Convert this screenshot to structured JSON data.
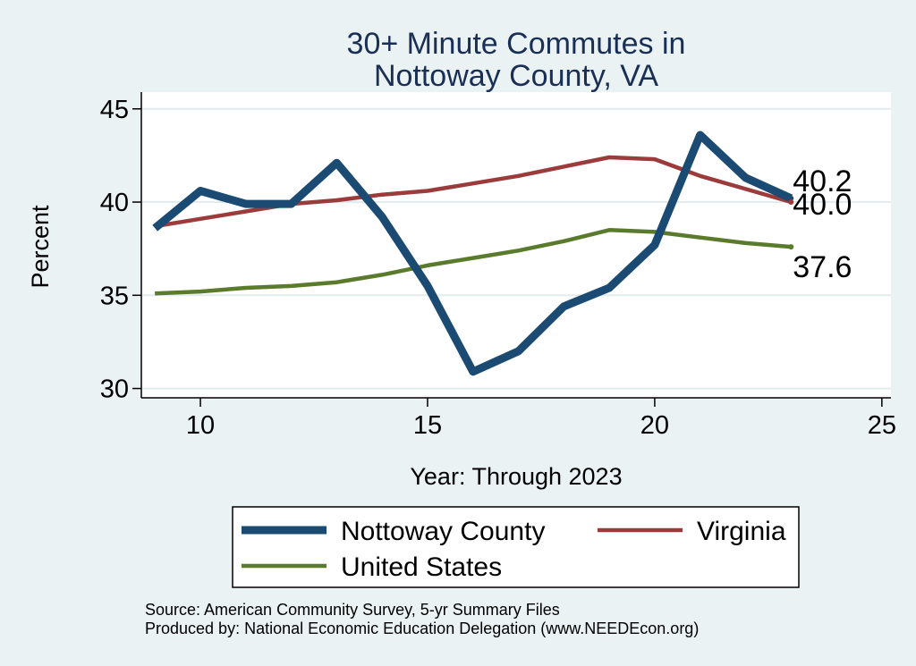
{
  "chart_data": {
    "type": "line",
    "title": [
      "30+ Minute Commutes in",
      "Nottoway County, VA"
    ],
    "xlabel": "Year: Through 2023",
    "ylabel": "Percent",
    "xlim": [
      8.7,
      25.2
    ],
    "ylim": [
      29.5,
      45.9
    ],
    "x_ticks": [
      10,
      15,
      20,
      25
    ],
    "y_ticks": [
      30,
      35,
      40,
      45
    ],
    "grid": true,
    "x": [
      9,
      10,
      11,
      12,
      13,
      14,
      15,
      16,
      17,
      18,
      19,
      20,
      21,
      22,
      23
    ],
    "series": [
      {
        "name": "Nottoway County",
        "color": "#1b4a72",
        "values": [
          38.6,
          40.6,
          39.9,
          39.9,
          42.1,
          39.2,
          35.5,
          30.9,
          32.0,
          34.4,
          35.4,
          37.7,
          43.6,
          41.3,
          40.2
        ],
        "end_label": "40.2"
      },
      {
        "name": "Virginia",
        "color": "#9c3b3c",
        "values": [
          38.7,
          39.1,
          39.5,
          39.9,
          40.1,
          40.4,
          40.6,
          41.0,
          41.4,
          41.9,
          42.4,
          42.3,
          41.4,
          40.7,
          40.0
        ],
        "end_label": "40.0"
      },
      {
        "name": "United States",
        "color": "#5a7a2c",
        "values": [
          35.1,
          35.2,
          35.4,
          35.5,
          35.7,
          36.1,
          36.6,
          37.0,
          37.4,
          37.9,
          38.5,
          38.4,
          38.1,
          37.8,
          37.6
        ],
        "end_label": "37.6"
      }
    ],
    "legend": {
      "position": "bottom",
      "items": [
        "Nottoway County",
        "Virginia",
        "United States"
      ]
    },
    "notes": [
      "Source: American Community Survey, 5-yr Summary Files",
      "Produced by: National Economic Education Delegation (www.NEEDEcon.org)"
    ]
  }
}
